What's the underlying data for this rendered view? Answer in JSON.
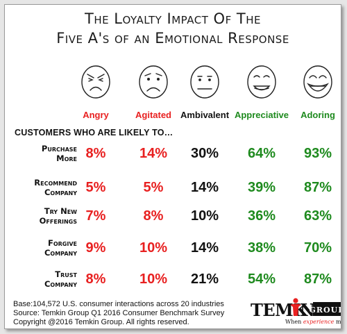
{
  "title_line1": "The Loyalty Impact Of The",
  "title_line2": "Five A's of an Emotional Response",
  "subheading": "CUSTOMERS WHO ARE LIKELY TO…",
  "emotions": [
    {
      "label": "Angry",
      "color": "#e82020",
      "icon": "angry-face-icon"
    },
    {
      "label": "Agitated",
      "color": "#e82020",
      "icon": "agitated-face-icon"
    },
    {
      "label": "Ambivalent",
      "color": "#111111",
      "icon": "ambivalent-face-icon"
    },
    {
      "label": "Appreciative",
      "color": "#1e8a1e",
      "icon": "appreciative-face-icon"
    },
    {
      "label": "Adoring",
      "color": "#1e8a1e",
      "icon": "adoring-face-icon"
    }
  ],
  "rows": [
    {
      "line1": "Purchase",
      "line2": "More",
      "values": [
        "8%",
        "14%",
        "30%",
        "64%",
        "93%"
      ]
    },
    {
      "line1": "Recommend",
      "line2": "Company",
      "values": [
        "5%",
        "5%",
        "14%",
        "39%",
        "87%"
      ]
    },
    {
      "line1": "Try New",
      "line2": "Offerings",
      "values": [
        "7%",
        "8%",
        "10%",
        "36%",
        "63%"
      ]
    },
    {
      "line1": "Forgive",
      "line2": "Company",
      "values": [
        "9%",
        "10%",
        "14%",
        "38%",
        "70%"
      ]
    },
    {
      "line1": "Trust",
      "line2": "Company",
      "values": [
        "8%",
        "10%",
        "21%",
        "54%",
        "87%"
      ]
    }
  ],
  "footer": {
    "base": "Base:104,572 U.S. consumer interactions across 20 industries",
    "source": "Source: Temkin Group Q1 2016 Consumer Benchmark Survey",
    "copyright": "Copyright @2016 Temkin Group. All rights reserved."
  },
  "logo": {
    "name_left": "TEMK",
    "name_right": "N",
    "group": "GROUP",
    "tagline_pre": "When ",
    "tagline_em": "experience",
    "tagline_post": " matters"
  },
  "chart_data": {
    "type": "table",
    "title": "The Loyalty Impact Of The Five A's of an Emotional Response",
    "columns": [
      "Angry",
      "Agitated",
      "Ambivalent",
      "Appreciative",
      "Adoring"
    ],
    "rows": [
      "Purchase More",
      "Recommend Company",
      "Try New Offerings",
      "Forgive Company",
      "Trust Company"
    ],
    "values": [
      [
        8,
        14,
        30,
        64,
        93
      ],
      [
        5,
        5,
        14,
        39,
        87
      ],
      [
        7,
        8,
        10,
        36,
        63
      ],
      [
        9,
        10,
        14,
        38,
        70
      ],
      [
        8,
        10,
        21,
        54,
        87
      ]
    ],
    "unit": "%"
  }
}
